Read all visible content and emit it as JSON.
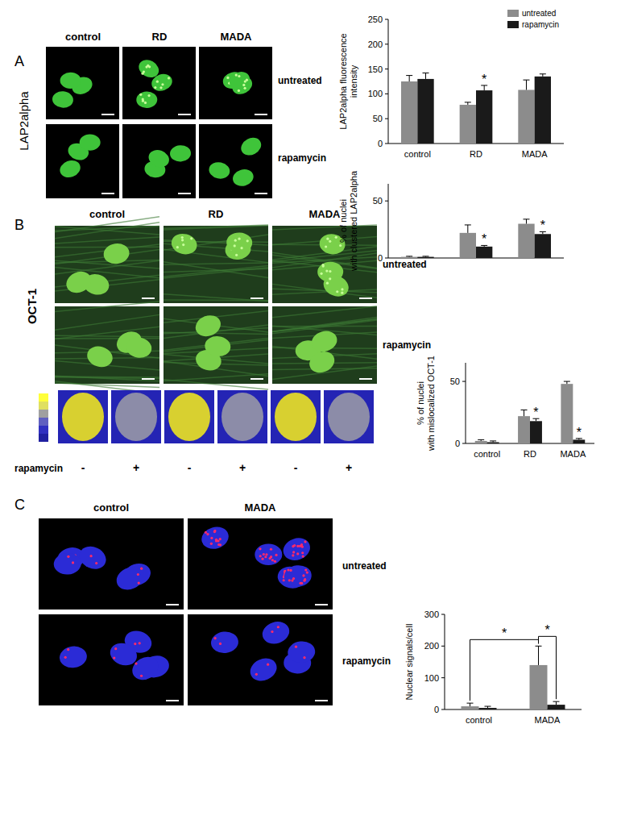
{
  "chart_data": [
    {
      "type": "bar",
      "ylabel": "LAP2alpha fluorescence intensity",
      "categories": [
        "control",
        "RD",
        "MADA"
      ],
      "series": [
        {
          "name": "untreated",
          "color": "#8c8c8c",
          "values": [
            125,
            78,
            108
          ],
          "errors": [
            12,
            5,
            20
          ]
        },
        {
          "name": "rapamycin",
          "color": "#1a1a1a",
          "values": [
            130,
            107,
            135
          ],
          "errors": [
            12,
            10,
            5
          ]
        }
      ],
      "ylim": [
        0,
        250
      ],
      "yticks": [
        0,
        50,
        100,
        150,
        200,
        250
      ],
      "legend": "top-right",
      "annotations": [
        {
          "text": "*",
          "category": "RD",
          "series": "rapamycin"
        }
      ]
    },
    {
      "type": "bar",
      "ylabel": "% of nuclei with clustered LAP2alpha",
      "categories": [
        "control",
        "RD",
        "MADA"
      ],
      "series": [
        {
          "name": "untreated",
          "color": "#8c8c8c",
          "values": [
            1,
            22,
            30
          ],
          "errors": [
            0.5,
            7,
            4
          ]
        },
        {
          "name": "rapamycin",
          "color": "#1a1a1a",
          "values": [
            1,
            10,
            21
          ],
          "errors": [
            0.5,
            1,
            2
          ]
        }
      ],
      "ylim": [
        0,
        65
      ],
      "yticks": [
        0,
        50
      ],
      "tick_labels": "y",
      "annotations": [
        {
          "text": "*",
          "category": "RD",
          "series": "rapamycin"
        },
        {
          "text": "*",
          "category": "MADA",
          "series": "rapamycin"
        }
      ]
    },
    {
      "type": "bar",
      "ylabel": "% of nuclei with mislocalized OCT-1",
      "categories": [
        "control",
        "RD",
        "MADA"
      ],
      "series": [
        {
          "name": "untreated",
          "color": "#8c8c8c",
          "values": [
            2,
            22,
            48
          ],
          "errors": [
            1,
            5,
            2
          ]
        },
        {
          "name": "rapamycin",
          "color": "#1a1a1a",
          "values": [
            1,
            18,
            3
          ],
          "errors": [
            1,
            2,
            1
          ]
        }
      ],
      "ylim": [
        0,
        65
      ],
      "yticks": [
        0,
        50
      ],
      "annotations": [
        {
          "text": "*",
          "category": "RD",
          "series": "rapamycin"
        },
        {
          "text": "*",
          "category": "MADA",
          "series": "rapamycin"
        }
      ]
    },
    {
      "type": "bar",
      "ylabel": "Nuclear signals/cell",
      "categories": [
        "control",
        "MADA"
      ],
      "series": [
        {
          "name": "untreated",
          "color": "#8c8c8c",
          "values": [
            10,
            140
          ],
          "errors": [
            10,
            60
          ]
        },
        {
          "name": "rapamycin",
          "color": "#1a1a1a",
          "values": [
            5,
            15
          ],
          "errors": [
            5,
            10
          ]
        }
      ],
      "ylim": [
        0,
        300
      ],
      "yticks": [
        0,
        100,
        200,
        300
      ],
      "annotations": [
        {
          "text": "*",
          "from": {
            "category": "control",
            "series": "untreated"
          },
          "to": {
            "category": "MADA",
            "series": "untreated"
          }
        },
        {
          "text": "*",
          "from": {
            "category": "MADA",
            "series": "untreated"
          },
          "to": {
            "category": "MADA",
            "series": "rapamycin"
          }
        }
      ]
    }
  ],
  "figure": {
    "panels": [
      {
        "label": "A",
        "marker_label": "LAP2alpha",
        "columns": [
          "control",
          "RD",
          "MADA"
        ],
        "rows": [
          "untreated",
          "rapamycin"
        ]
      },
      {
        "label": "B",
        "marker_label": "OCT-1",
        "columns": [
          "control",
          "RD",
          "MADA"
        ],
        "rows": [
          "untreated",
          "rapamycin"
        ],
        "heatmap_label": "rapamycin",
        "heatmap_signs": [
          "-",
          "+",
          "-",
          "+",
          "-",
          "+"
        ]
      },
      {
        "label": "C",
        "columns": [
          "control",
          "MADA"
        ],
        "rows": [
          "untreated",
          "rapamycin"
        ]
      }
    ]
  }
}
